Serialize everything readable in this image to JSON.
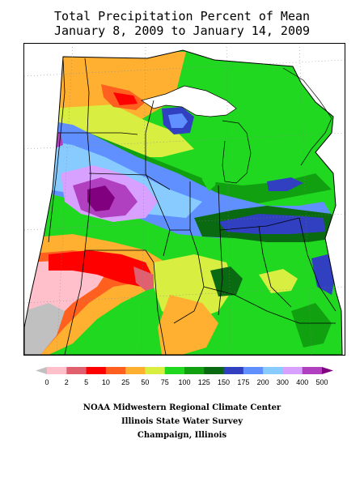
{
  "title": {
    "line1": "Total Precipitation Percent of Mean",
    "line2": "January 8, 2009 to January 14, 2009"
  },
  "legend": {
    "labels": [
      "0",
      "2",
      "5",
      "10",
      "25",
      "50",
      "75",
      "100",
      "125",
      "150",
      "175",
      "200",
      "300",
      "400",
      "500"
    ],
    "colors": [
      "#c0c0c0",
      "#ffc0cb",
      "#e06070",
      "#ff0000",
      "#ff6020",
      "#ffb030",
      "#d8ee40",
      "#20d820",
      "#10a010",
      "#0a6a12",
      "#3040c0",
      "#6090ff",
      "#88ccff",
      "#d8a0ff",
      "#b040c0",
      "#800080"
    ]
  },
  "footer": {
    "line1": "NOAA Midwestern Regional Climate Center",
    "line2": "Illinois State Water Survey",
    "line3": "Champaign, Illinois"
  }
}
